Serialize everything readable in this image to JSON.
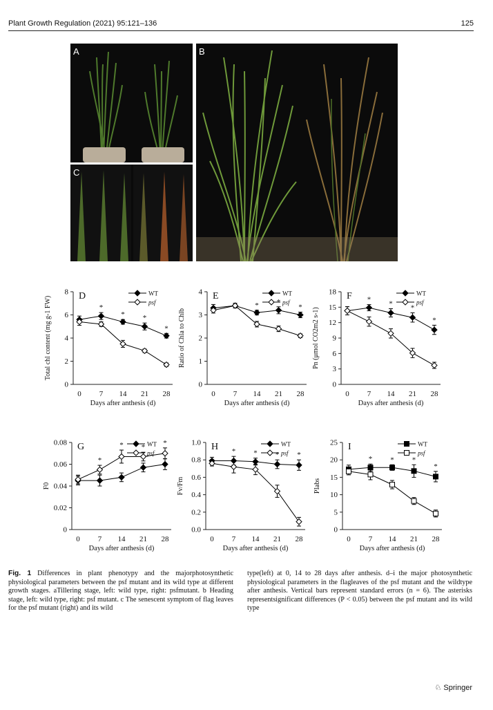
{
  "header": {
    "journal": "Plant Growth Regulation (2021) 95:121–136",
    "page": "125"
  },
  "photos": {
    "A": "A",
    "B": "B",
    "C": "C"
  },
  "colors": {
    "wt": "#000000",
    "psf": "#ffffff",
    "axis": "#222222"
  },
  "icons": {
    "publisher_logo": "springer-horse-icon"
  },
  "charts": [
    {
      "id": "D",
      "type": "line",
      "ylabel": "Total chl content (mg g-1 FW)",
      "xlabel": "Days after anthesis (d)",
      "x": [
        0,
        7,
        14,
        21,
        28
      ],
      "xticks": [
        "0",
        "7",
        "14",
        "21",
        "28"
      ],
      "ylim": [
        0,
        8
      ],
      "yticks": [
        "0",
        "2",
        "4",
        "6",
        "8"
      ],
      "legend_wt": "WT",
      "legend_psf": "psf",
      "marker": "diamond",
      "series": [
        {
          "name": "WT",
          "values": [
            5.6,
            5.9,
            5.4,
            5.0,
            4.2
          ],
          "err": [
            0.3,
            0.3,
            0.2,
            0.3,
            0.2
          ]
        },
        {
          "name": "psf",
          "values": [
            5.4,
            5.2,
            3.5,
            2.9,
            1.7
          ],
          "err": [
            0.3,
            0.2,
            0.3,
            0.15,
            0.15
          ]
        }
      ],
      "stars": [
        1,
        2,
        3,
        4
      ]
    },
    {
      "id": "E",
      "type": "line",
      "ylabel": "Ratio of Chla to Chlb",
      "xlabel": "Days after anthesis (d)",
      "x": [
        0,
        7,
        14,
        21,
        28
      ],
      "xticks": [
        "0",
        "7",
        "14",
        "21",
        "28"
      ],
      "ylim": [
        0,
        4
      ],
      "yticks": [
        "0",
        "1",
        "2",
        "3",
        "4"
      ],
      "legend_wt": "WT",
      "legend_psf": "psf",
      "marker": "diamond",
      "series": [
        {
          "name": "WT",
          "values": [
            3.3,
            3.4,
            3.1,
            3.2,
            3.0
          ],
          "err": [
            0.15,
            0.1,
            0.1,
            0.15,
            0.12
          ]
        },
        {
          "name": "psf",
          "values": [
            3.2,
            3.4,
            2.6,
            2.4,
            2.1
          ],
          "err": [
            0.12,
            0.1,
            0.12,
            0.12,
            0.08
          ]
        }
      ],
      "stars": [
        2,
        3,
        4
      ]
    },
    {
      "id": "F",
      "type": "line",
      "ylabel": "Pn (μmol CO2m2 s-1)",
      "xlabel": "Days after anthesis (d)",
      "x": [
        0,
        7,
        14,
        21,
        28
      ],
      "xticks": [
        "0",
        "7",
        "14",
        "21",
        "28"
      ],
      "ylim": [
        0,
        18
      ],
      "yticks": [
        "0",
        "3",
        "6",
        "9",
        "12",
        "15",
        "18"
      ],
      "legend_wt": "WT",
      "legend_psf": "psf",
      "marker": "diamond",
      "series": [
        {
          "name": "WT",
          "values": [
            14.3,
            14.9,
            13.9,
            13.0,
            10.6
          ],
          "err": [
            0.8,
            0.6,
            0.8,
            0.9,
            0.9
          ]
        },
        {
          "name": "psf",
          "values": [
            14.3,
            12.2,
            9.9,
            6.1,
            3.7
          ],
          "err": [
            0.8,
            0.9,
            0.9,
            0.9,
            0.6
          ]
        }
      ],
      "stars": [
        1,
        2,
        3,
        4
      ]
    },
    {
      "id": "G",
      "type": "line",
      "ylabel": "F0",
      "xlabel": "Days after anthesis (d)",
      "x": [
        0,
        7,
        14,
        21,
        28
      ],
      "xticks": [
        "0",
        "7",
        "14",
        "21",
        "28"
      ],
      "ylim": [
        0,
        0.08
      ],
      "yticks": [
        "0",
        "0.02",
        "0.04",
        "0.06",
        "0.08"
      ],
      "legend_wt": "WT",
      "legend_psf": "psf",
      "marker": "diamond",
      "series": [
        {
          "name": "WT",
          "values": [
            0.045,
            0.045,
            0.048,
            0.057,
            0.06
          ],
          "err": [
            0.004,
            0.005,
            0.004,
            0.004,
            0.005
          ]
        },
        {
          "name": "psf",
          "values": [
            0.046,
            0.055,
            0.067,
            0.067,
            0.07
          ],
          "err": [
            0.004,
            0.004,
            0.006,
            0.004,
            0.005
          ]
        }
      ],
      "stars": [
        1,
        2,
        3,
        4
      ]
    },
    {
      "id": "H",
      "type": "line",
      "ylabel": "Fv/Fm",
      "xlabel": "Days after anthesis (d)",
      "x": [
        0,
        7,
        14,
        21,
        28
      ],
      "xticks": [
        "0",
        "7",
        "14",
        "21",
        "28"
      ],
      "ylim": [
        0,
        1.0
      ],
      "yticks": [
        "0.0",
        "0.2",
        "0.4",
        "0.6",
        "0.8",
        "1.0"
      ],
      "legend_wt": "WT",
      "legend_psf": "psf",
      "marker": "diamond",
      "series": [
        {
          "name": "WT",
          "values": [
            0.79,
            0.79,
            0.78,
            0.75,
            0.74
          ],
          "err": [
            0.04,
            0.05,
            0.04,
            0.05,
            0.06
          ]
        },
        {
          "name": "psf",
          "values": [
            0.76,
            0.72,
            0.69,
            0.44,
            0.09
          ],
          "err": [
            0.03,
            0.07,
            0.06,
            0.07,
            0.05
          ]
        }
      ],
      "stars": [
        1,
        2,
        3,
        4
      ]
    },
    {
      "id": "I",
      "type": "line",
      "ylabel": "PIabs",
      "xlabel": "Days after anthesis (d)",
      "x": [
        0,
        7,
        14,
        21,
        28
      ],
      "xticks": [
        "0",
        "7",
        "14",
        "21",
        "28"
      ],
      "ylim": [
        0,
        25
      ],
      "yticks": [
        "0",
        "5",
        "10",
        "15",
        "20",
        "25"
      ],
      "legend_wt": "WT",
      "legend_psf": "psf",
      "marker": "square",
      "series": [
        {
          "name": "WT",
          "values": [
            17.3,
            17.8,
            17.8,
            16.8,
            15.2
          ],
          "err": [
            1.2,
            1.0,
            0.8,
            1.8,
            1.5
          ]
        },
        {
          "name": "psf",
          "values": [
            16.7,
            15.8,
            12.9,
            8.2,
            4.6
          ],
          "err": [
            1.0,
            1.5,
            1.2,
            1.0,
            1.0
          ]
        }
      ],
      "stars": [
        1,
        2,
        3,
        4
      ]
    }
  ],
  "caption": {
    "label": "Fig. 1",
    "col1": "Differences in plant phenotypy and the majorphotosynthetic physiological parameters between the psf mutant and its wild type at different growth stages. aTillering stage, left: wild type, right: psfmutant. b Heading stage, left: wild type, right: psf mutant. c The senescent symptom of flag leaves for the psf mutant (right) and its wild",
    "col2": "type(left) at 0, 14 to 28 days after anthesis. d–i the major photosynthetic physiological parameters in the flagleaves of the psf mutant and the wildtype after anthesis. Vertical bars represent standard errors (n = 6). The asterisks representsignificant differences (P < 0.05) between the psf mutant and its wild type"
  },
  "footer": {
    "publisher": "Springer"
  }
}
